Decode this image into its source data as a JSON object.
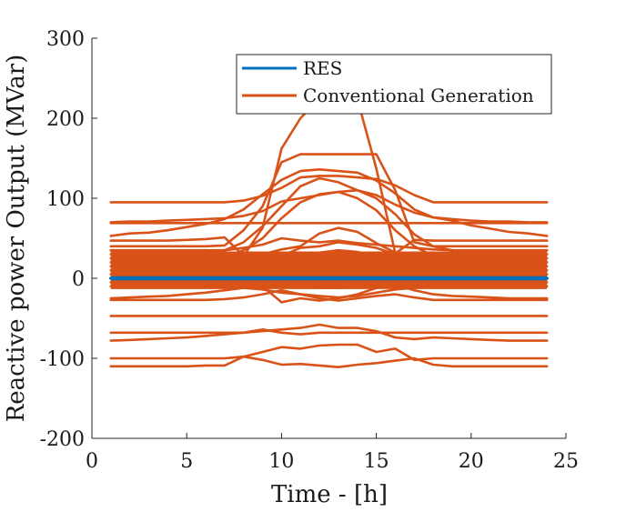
{
  "chart_data": {
    "type": "line",
    "xlabel": "Time - [h]",
    "ylabel": "Reactive power Output (MVar)",
    "xlim": [
      0,
      25
    ],
    "ylim": [
      -200,
      300
    ],
    "xticks": [
      0,
      5,
      10,
      15,
      20,
      25
    ],
    "yticks": [
      -200,
      -100,
      0,
      100,
      200,
      300
    ],
    "xtick_labels": [
      "0",
      "5",
      "10",
      "15",
      "20",
      "25"
    ],
    "ytick_labels": [
      "-200",
      "-100",
      "0",
      "100",
      "200",
      "300"
    ],
    "grid": false,
    "legend": {
      "placement": "top-right",
      "entries": [
        {
          "label": "RES",
          "color": "#0072BD"
        },
        {
          "label": "Conventional Generation",
          "color": "#D95319"
        }
      ]
    },
    "x": [
      1,
      2,
      3,
      4,
      5,
      6,
      7,
      8,
      9,
      10,
      11,
      12,
      13,
      14,
      15,
      16,
      17,
      18,
      19,
      20,
      21,
      22,
      23,
      24
    ],
    "series": [
      {
        "name": "Conventional Generation",
        "color": "#D95319",
        "values": [
          95,
          95,
          95,
          95,
          95,
          95,
          95,
          97,
          103,
          113,
          126,
          128,
          128,
          126,
          124,
          116,
          104,
          95,
          95,
          95,
          95,
          95,
          95,
          95
        ]
      },
      {
        "name": "Conventional Generation",
        "color": "#D95319",
        "values": [
          53,
          56,
          57,
          60,
          64,
          68,
          74,
          86,
          105,
          123,
          134,
          136,
          134,
          132,
          122,
          106,
          86,
          76,
          72,
          66,
          62,
          58,
          56,
          53
        ]
      },
      {
        "name": "Conventional Generation",
        "color": "#D95319",
        "values": [
          70,
          71,
          71,
          72,
          73,
          74,
          75,
          78,
          84,
          96,
          100,
          104,
          108,
          110,
          104,
          92,
          82,
          76,
          74,
          72,
          71,
          71,
          70,
          70
        ]
      },
      {
        "name": "Conventional Generation",
        "color": "#D95319",
        "values": [
          69,
          69,
          69,
          69,
          69,
          69,
          69,
          69,
          69,
          69,
          69,
          69,
          69,
          69,
          69,
          69,
          69,
          69,
          69,
          69,
          69,
          69,
          69,
          69
        ]
      },
      {
        "name": "Conventional Generation",
        "color": "#D95319",
        "values": [
          47,
          47,
          47,
          47,
          48,
          49,
          51,
          28,
          63,
          162,
          200,
          225,
          235,
          224,
          137,
          31,
          48,
          47,
          47,
          47,
          47,
          47,
          47,
          47
        ]
      },
      {
        "name": "Conventional Generation",
        "color": "#D95319",
        "values": [
          40,
          40,
          40,
          40,
          40,
          40,
          41,
          60,
          90,
          145,
          155,
          155,
          155,
          155,
          155,
          110,
          45,
          40,
          40,
          40,
          40,
          40,
          40,
          40
        ]
      },
      {
        "name": "Conventional Generation",
        "color": "#D95319",
        "values": [
          30,
          30,
          30,
          30,
          31,
          33,
          35,
          45,
          65,
          90,
          115,
          125,
          120,
          110,
          100,
          80,
          55,
          40,
          35,
          32,
          31,
          30,
          30,
          30
        ]
      },
      {
        "name": "Conventional Generation",
        "color": "#D95319",
        "values": [
          20,
          20,
          20,
          21,
          22,
          24,
          27,
          35,
          50,
          75,
          95,
          105,
          108,
          100,
          85,
          60,
          40,
          28,
          24,
          22,
          21,
          20,
          20,
          20
        ]
      },
      {
        "name": "Conventional Generation",
        "color": "#D95319",
        "values": [
          35,
          35,
          35,
          35,
          35,
          35,
          35,
          38,
          42,
          50,
          47,
          45,
          47,
          44,
          42,
          40,
          38,
          36,
          35,
          35,
          35,
          35,
          35,
          35
        ]
      },
      {
        "name": "Conventional Generation",
        "color": "#D95319",
        "values": [
          25,
          25,
          25,
          25,
          25,
          25,
          25,
          27,
          30,
          36,
          40,
          56,
          63,
          58,
          44,
          32,
          28,
          26,
          25,
          25,
          25,
          25,
          25,
          25
        ]
      },
      {
        "name": "Conventional Generation",
        "color": "#D95319",
        "values": [
          15,
          15,
          15,
          15,
          15,
          15,
          15,
          18,
          22,
          28,
          38,
          40,
          45,
          42,
          38,
          30,
          22,
          18,
          16,
          15,
          15,
          15,
          15,
          15
        ]
      },
      {
        "name": "Conventional Generation",
        "color": "#D95319",
        "values": [
          10,
          10,
          10,
          10,
          10,
          10,
          10,
          12,
          16,
          22,
          28,
          32,
          35,
          33,
          28,
          22,
          16,
          12,
          11,
          10,
          10,
          10,
          10,
          10
        ]
      },
      {
        "name": "Conventional Generation",
        "color": "#D95319",
        "values": [
          5,
          5,
          5,
          5,
          5,
          5,
          5,
          6,
          8,
          12,
          16,
          20,
          24,
          22,
          18,
          12,
          8,
          6,
          5,
          5,
          5,
          5,
          5,
          5
        ]
      },
      {
        "name": "Conventional Generation",
        "color": "#D95319",
        "values": [
          -5,
          -5,
          -5,
          -5,
          -5,
          -5,
          -5,
          -5,
          -6,
          -8,
          -10,
          -12,
          -12,
          -11,
          -10,
          -8,
          -6,
          -5,
          -5,
          -5,
          -5,
          -5,
          -5,
          -5
        ]
      },
      {
        "name": "Conventional Generation",
        "color": "#D95319",
        "values": [
          -10,
          -10,
          -10,
          -10,
          -10,
          -10,
          -10,
          -12,
          -14,
          -18,
          -20,
          -22,
          -24,
          -22,
          -18,
          -14,
          -12,
          -10,
          -10,
          -10,
          -10,
          -10,
          -10,
          -10
        ]
      },
      {
        "name": "Conventional Generation",
        "color": "#D95319",
        "values": [
          -25,
          -24,
          -23,
          -22,
          -20,
          -18,
          -15,
          -12,
          -10,
          -30,
          -25,
          -28,
          -25,
          -20,
          -12,
          -8,
          -15,
          -20,
          -22,
          -23,
          -24,
          -25,
          -25,
          -25
        ]
      },
      {
        "name": "Conventional Generation",
        "color": "#D95319",
        "values": [
          -27,
          -27,
          -27,
          -27,
          -27,
          -27,
          -26,
          -24,
          -20,
          -15,
          -20,
          -25,
          -28,
          -25,
          -22,
          -20,
          -24,
          -27,
          -27,
          -27,
          -27,
          -27,
          -27,
          -27
        ]
      },
      {
        "name": "Conventional Generation",
        "color": "#D95319",
        "values": [
          -47,
          -47,
          -47,
          -47,
          -47,
          -47,
          -47,
          -47,
          -47,
          -47,
          -47,
          -47,
          -47,
          -47,
          -47,
          -47,
          -47,
          -47,
          -47,
          -47,
          -47,
          -47,
          -47,
          -47
        ]
      },
      {
        "name": "Conventional Generation",
        "color": "#D95319",
        "values": [
          -68,
          -68,
          -68,
          -68,
          -68,
          -68,
          -68,
          -68,
          -64,
          -68,
          -70,
          -68,
          -68,
          -68,
          -68,
          -68,
          -68,
          -68,
          -68,
          -68,
          -68,
          -68,
          -68,
          -68
        ]
      },
      {
        "name": "Conventional Generation",
        "color": "#D95319",
        "values": [
          -78,
          -77,
          -76,
          -75,
          -74,
          -72,
          -70,
          -68,
          -66,
          -64,
          -62,
          -58,
          -62,
          -62,
          -66,
          -74,
          -76,
          -74,
          -75,
          -76,
          -77,
          -78,
          -78,
          -78
        ]
      },
      {
        "name": "Conventional Generation",
        "color": "#D95319",
        "values": [
          -100,
          -100,
          -100,
          -100,
          -100,
          -100,
          -100,
          -98,
          -92,
          -86,
          -88,
          -84,
          -83,
          -83,
          -92,
          -88,
          -102,
          -100,
          -100,
          -100,
          -100,
          -100,
          -100,
          -100
        ]
      },
      {
        "name": "Conventional Generation",
        "color": "#D95319",
        "values": [
          -110,
          -110,
          -110,
          -110,
          -110,
          -109,
          -109,
          -98,
          -102,
          -108,
          -107,
          -109,
          -111,
          -108,
          -106,
          -103,
          -100,
          -108,
          -110,
          -110,
          -110,
          -110,
          -110,
          -110
        ]
      },
      {
        "name": "RES",
        "color": "#0072BD",
        "values": [
          0,
          0,
          0,
          0,
          0,
          0,
          0,
          2,
          5,
          8,
          10,
          12,
          12,
          11,
          9,
          6,
          3,
          0,
          0,
          0,
          0,
          0,
          0,
          0
        ]
      },
      {
        "name": "RES",
        "color": "#0072BD",
        "values": [
          0,
          0,
          0,
          0,
          0,
          0,
          0,
          5,
          20,
          15,
          18,
          28,
          31,
          25,
          16,
          17,
          3,
          0,
          0,
          0,
          0,
          0,
          0,
          0
        ]
      },
      {
        "name": "RES",
        "color": "#0072BD",
        "values": [
          0,
          0,
          0,
          0,
          0,
          0,
          0,
          1,
          3,
          5,
          7,
          8,
          8,
          7,
          6,
          4,
          2,
          0,
          0,
          0,
          0,
          0,
          0,
          0
        ]
      }
    ]
  }
}
